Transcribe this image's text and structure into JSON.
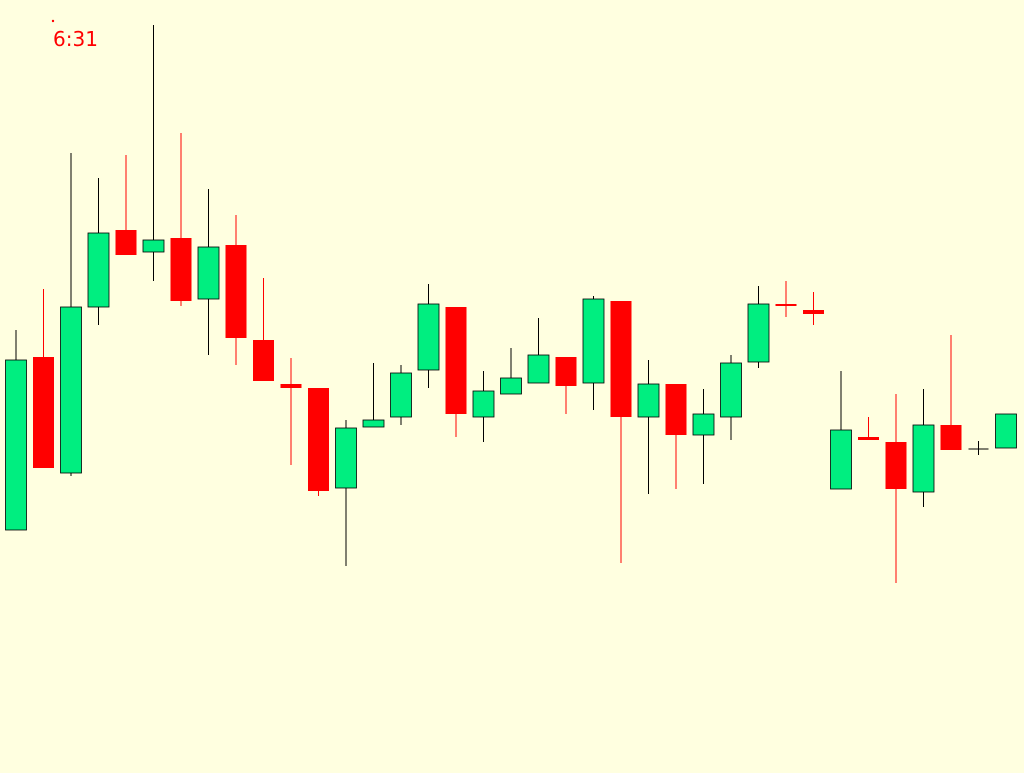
{
  "chart_data": {
    "type": "candlestick",
    "title": "6:31",
    "ylim": [
      0,
      773
    ],
    "up_color": "#00ee80",
    "down_color": "#ff0000",
    "doji_color": "#000000",
    "open": [
      243,
      416,
      300,
      466,
      543,
      521,
      535,
      474,
      528,
      433,
      389,
      385,
      285,
      346,
      356,
      403,
      466,
      356,
      379,
      390,
      416,
      390,
      472,
      356,
      389,
      338,
      356,
      411,
      469,
      463,
      284,
      336,
      331,
      281,
      348,
      324,
      325
    ],
    "high": [
      443,
      484,
      620,
      595,
      618,
      748,
      640,
      584,
      558,
      495,
      415,
      385,
      353,
      410,
      408,
      489,
      466,
      402,
      425,
      455,
      416,
      477,
      472,
      413,
      389,
      384,
      418,
      487,
      492,
      481,
      402,
      356,
      379,
      384,
      438,
      332,
      359
    ],
    "low": [
      243,
      305,
      297,
      448,
      518,
      492,
      467,
      418,
      408,
      392,
      308,
      277,
      207,
      346,
      348,
      385,
      336,
      331,
      379,
      390,
      359,
      363,
      210,
      279,
      284,
      289,
      333,
      405,
      456,
      448,
      284,
      333,
      190,
      266,
      323,
      318,
      325
    ],
    "close": [
      413,
      305,
      466,
      540,
      518,
      533,
      472,
      526,
      435,
      392,
      385,
      282,
      345,
      353,
      400,
      469,
      359,
      382,
      395,
      418,
      387,
      474,
      356,
      389,
      338,
      359,
      410,
      469,
      467,
      459,
      343,
      333,
      284,
      348,
      323,
      324,
      359
    ]
  }
}
